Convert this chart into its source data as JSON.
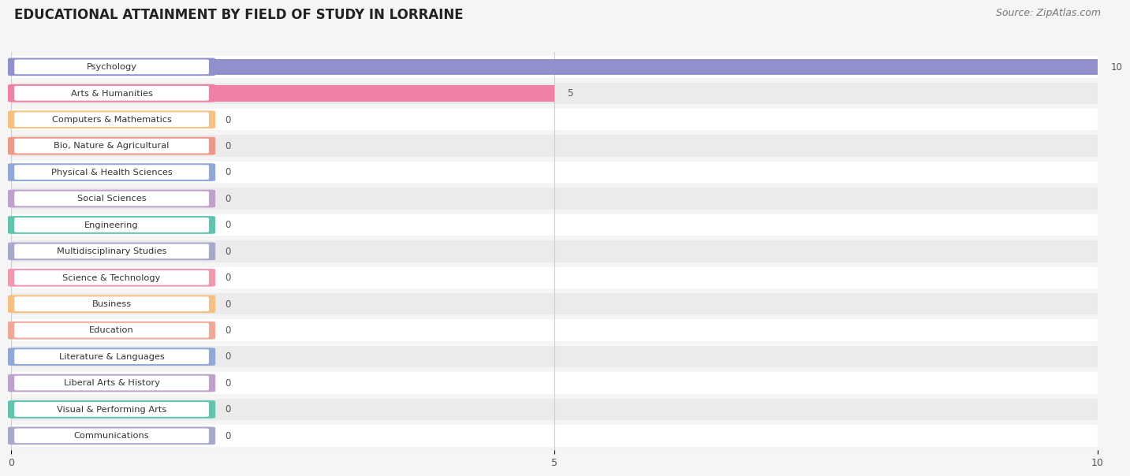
{
  "title": "EDUCATIONAL ATTAINMENT BY FIELD OF STUDY IN LORRAINE",
  "source": "Source: ZipAtlas.com",
  "categories": [
    "Psychology",
    "Arts & Humanities",
    "Computers & Mathematics",
    "Bio, Nature & Agricultural",
    "Physical & Health Sciences",
    "Social Sciences",
    "Engineering",
    "Multidisciplinary Studies",
    "Science & Technology",
    "Business",
    "Education",
    "Literature & Languages",
    "Liberal Arts & History",
    "Visual & Performing Arts",
    "Communications"
  ],
  "values": [
    10,
    5,
    0,
    0,
    0,
    0,
    0,
    0,
    0,
    0,
    0,
    0,
    0,
    0,
    0
  ],
  "bar_colors": [
    "#9090CC",
    "#F080A8",
    "#F5C080",
    "#F09888",
    "#90A8D8",
    "#C0A0CC",
    "#60C4B0",
    "#A8A8CC",
    "#F098B0",
    "#F5C080",
    "#F0A898",
    "#90A8D8",
    "#C0A0CC",
    "#60C4B0",
    "#A8A8CC"
  ],
  "xlim": [
    0,
    10
  ],
  "xticks": [
    0,
    5,
    10
  ],
  "background_color": "#f0f0f0",
  "title_fontsize": 12,
  "source_fontsize": 9,
  "tick_fontsize": 9
}
